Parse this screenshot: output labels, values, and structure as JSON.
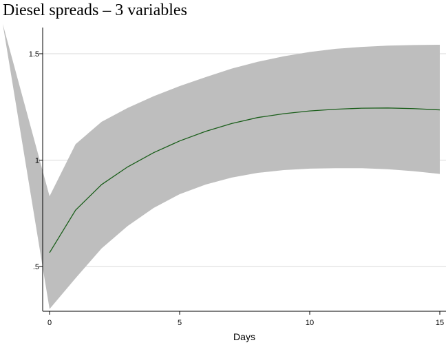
{
  "chart_data": {
    "type": "line",
    "title": "Diesel spreads – 3 variables",
    "xlabel": "Days",
    "ylabel": "",
    "xlim": [
      0,
      15
    ],
    "ylim": [
      0.3,
      1.65
    ],
    "x_ticks": [
      0,
      5,
      10,
      15
    ],
    "x_tick_labels": [
      "0",
      "5",
      "10",
      "15"
    ],
    "y_ticks": [
      0.5,
      1,
      1.5
    ],
    "y_tick_labels": [
      ".5",
      "1",
      "1.5"
    ],
    "grid": "horizontal",
    "colors": {
      "line": "#1a5e1a",
      "band": "#bebebe",
      "grid": "#d9d9d9"
    },
    "x": [
      0,
      1,
      2,
      3,
      4,
      5,
      6,
      7,
      8,
      9,
      10,
      11,
      12,
      13,
      14,
      15
    ],
    "band_out_of_range_left_upper": 1.64,
    "series": [
      {
        "values": [
          0.565,
          0.765,
          0.885,
          0.968,
          1.035,
          1.09,
          1.135,
          1.172,
          1.2,
          1.218,
          1.231,
          1.239,
          1.244,
          1.245,
          1.242,
          1.236
        ]
      }
    ],
    "band": {
      "upper": [
        0.83,
        1.075,
        1.18,
        1.245,
        1.3,
        1.348,
        1.39,
        1.43,
        1.462,
        1.488,
        1.508,
        1.523,
        1.532,
        1.538,
        1.541,
        1.542
      ],
      "lower": [
        0.3,
        0.445,
        0.585,
        0.69,
        0.775,
        0.84,
        0.885,
        0.918,
        0.94,
        0.953,
        0.96,
        0.962,
        0.962,
        0.957,
        0.948,
        0.935
      ]
    }
  }
}
